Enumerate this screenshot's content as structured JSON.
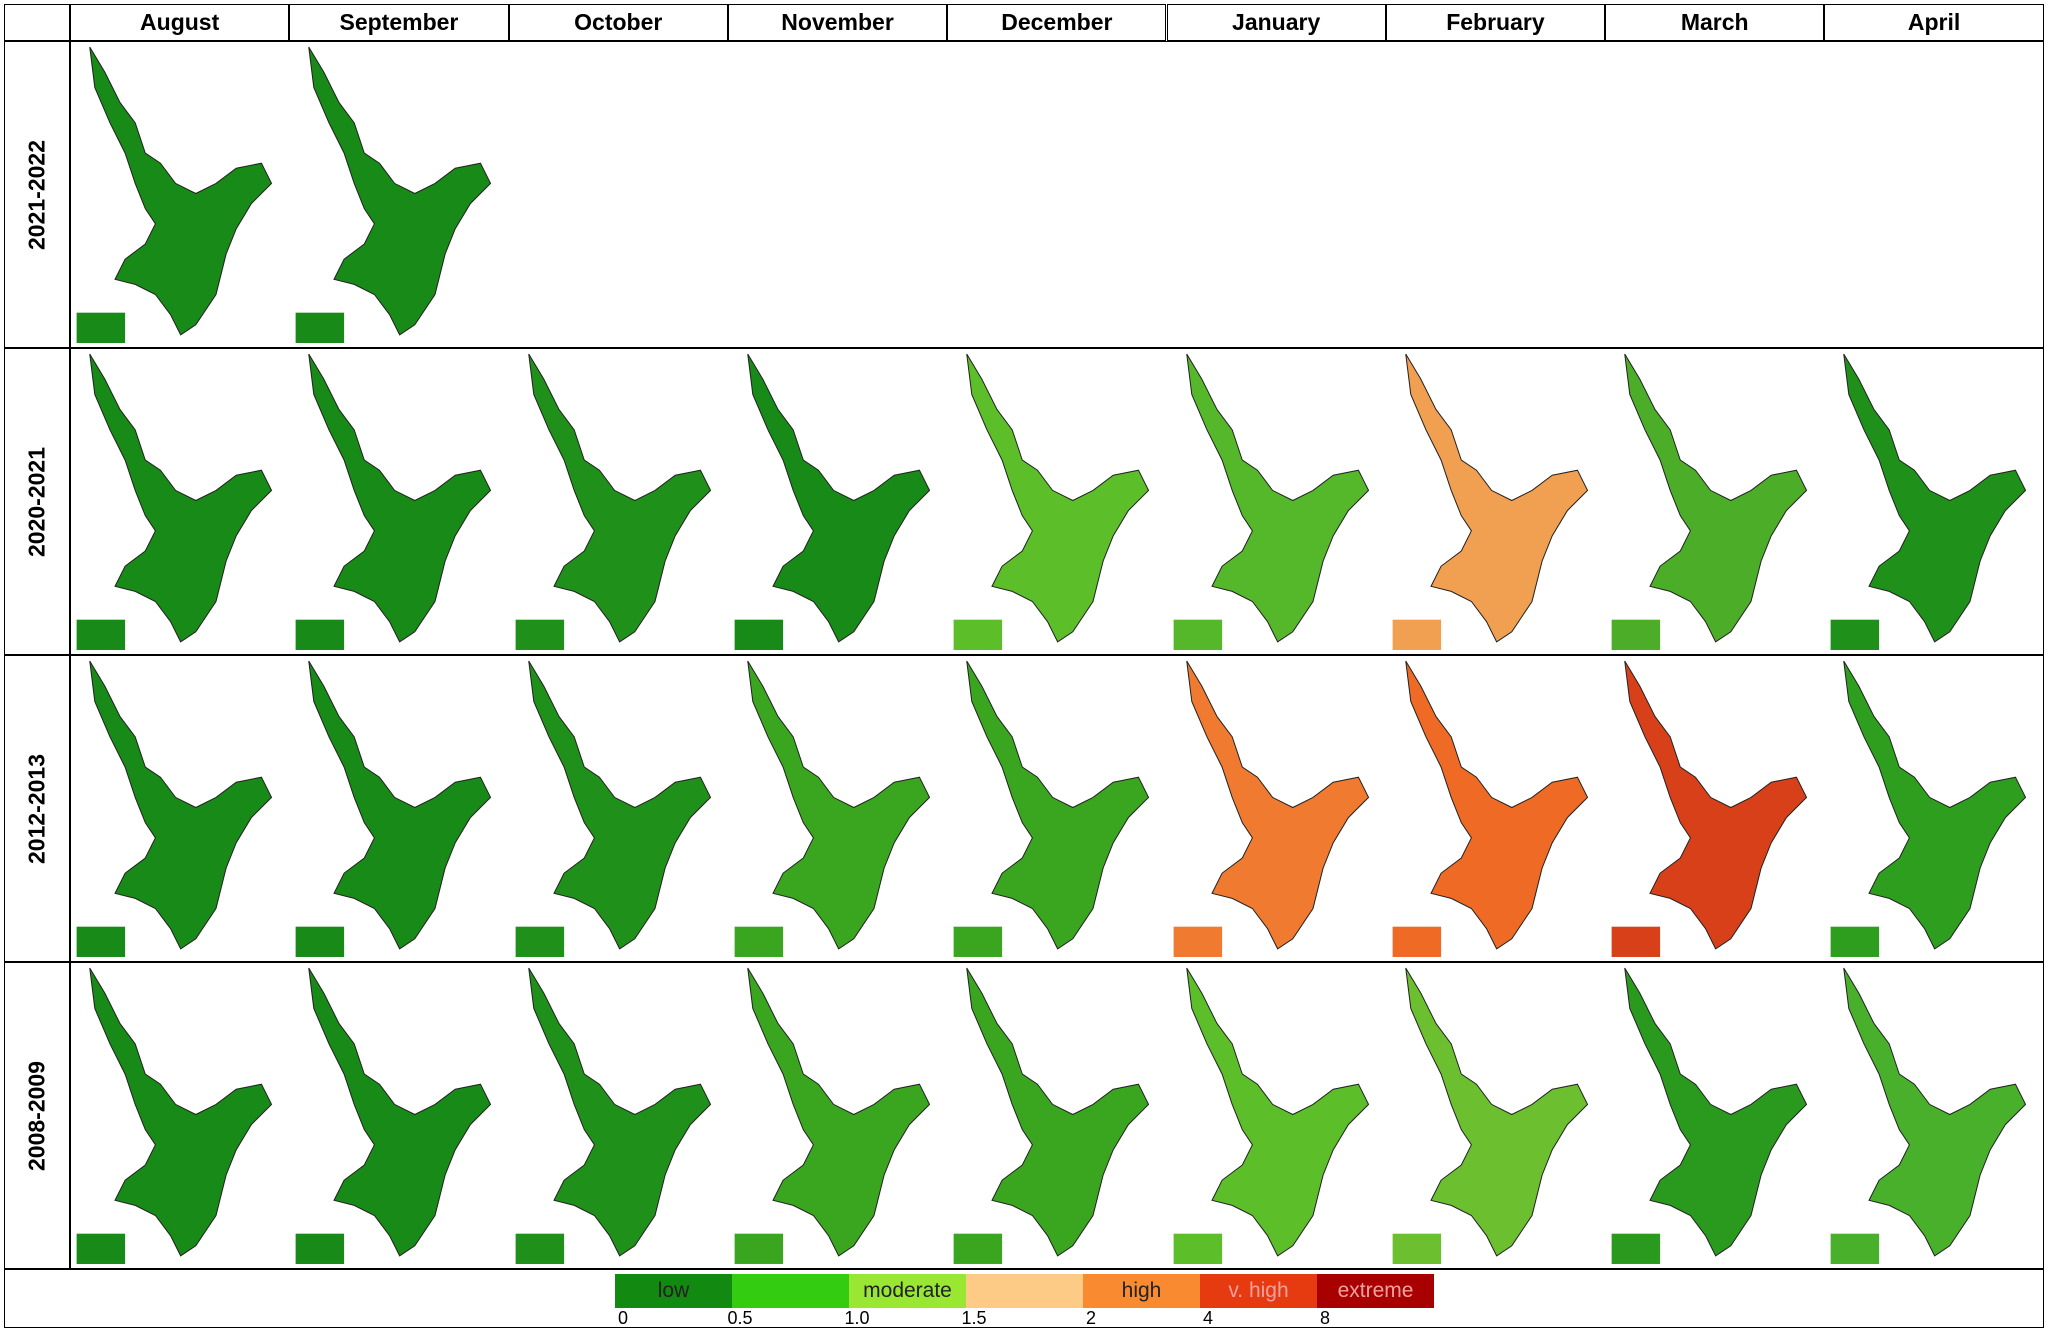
{
  "header": {
    "corner": null,
    "months": [
      "August",
      "September",
      "October",
      "November",
      "December",
      "January",
      "February",
      "March",
      "April"
    ]
  },
  "rows": [
    {
      "label": "2021-2022",
      "map_colors": [
        "#178a17",
        "#178a17"
      ]
    },
    {
      "label": "2020-2021",
      "map_colors": [
        "#178a17",
        "#178a17",
        "#1f901a",
        "#178a17",
        "#5cbf2a",
        "#55b82a",
        "#f0a050",
        "#4cae28",
        "#1f901a"
      ]
    },
    {
      "label": "2012-2013",
      "map_colors": [
        "#178a17",
        "#178a17",
        "#1f901a",
        "#3aa620",
        "#3aa620",
        "#f07a30",
        "#ef6a25",
        "#d8401a",
        "#2e9e1e"
      ]
    },
    {
      "label": "2008-2009",
      "map_colors": [
        "#178a17",
        "#178a17",
        "#1f901a",
        "#3aa620",
        "#3aa620",
        "#5cbf2a",
        "#6cc030",
        "#2a9a1e",
        "#48b02a"
      ]
    }
  ],
  "legend": {
    "segments": [
      {
        "color": "#128a12",
        "label": "low"
      },
      {
        "color": "#33cc11"
      },
      {
        "color": "#99e633",
        "label": "moderate"
      },
      {
        "color": "#fdcb85"
      },
      {
        "color": "#f98a30",
        "label": "high"
      },
      {
        "color": "#e63a10",
        "label": "v. high"
      },
      {
        "color": "#a80000",
        "label": "extreme"
      }
    ],
    "ticks": [
      "0",
      "0.5",
      "1.0",
      "1.5",
      "2",
      "4",
      "8"
    ]
  }
}
